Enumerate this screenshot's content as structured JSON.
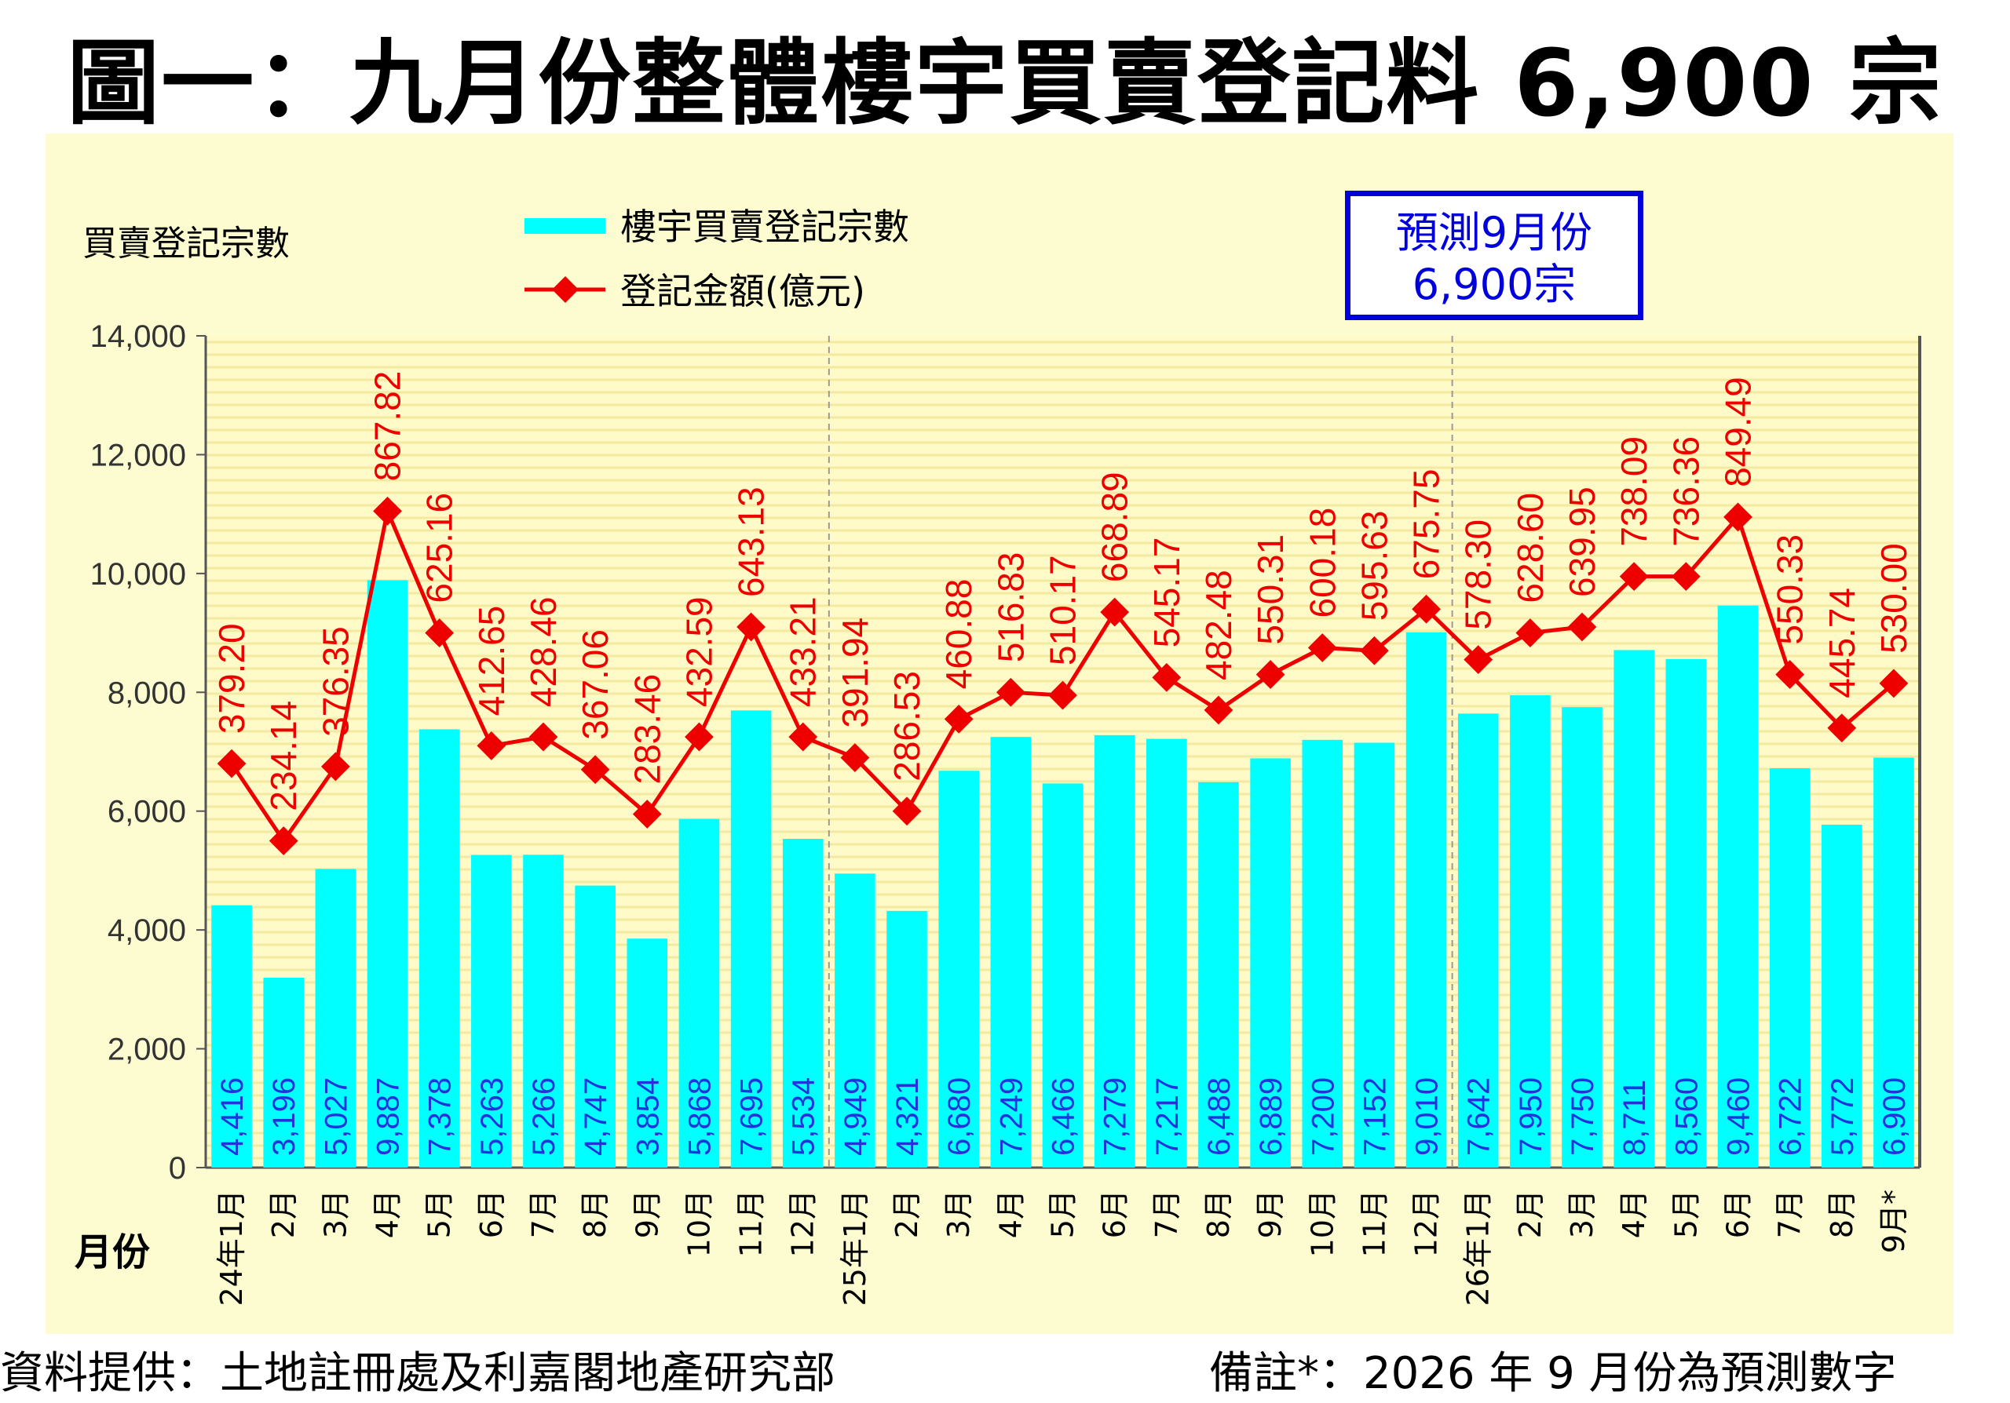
{
  "title": "圖一：九月份整體樓宇買賣登記料 6,900 宗",
  "source": "資料提供：土地註冊處及利嘉閣地產研究部",
  "note": "備註*：2026 年 9 月份為預測數字",
  "forecast_box": {
    "line1": "預測9月份",
    "line2": "6,900宗"
  },
  "colors": {
    "bar": "#00ffff",
    "line": "#ee0000",
    "bar_label": "#2233dd",
    "box": "#0000dd",
    "panel": "#fdfbd0"
  },
  "chart_data": {
    "type": "bar+line",
    "ylabel": "買賣登記宗數",
    "xlabel": "月份",
    "ylim": [
      0,
      14000
    ],
    "yticks": [
      "0",
      "2,000",
      "4,000",
      "6,000",
      "8,000",
      "10,000",
      "12,000",
      "14,000"
    ],
    "legend": [
      "樓宇買賣登記宗數",
      "登記金額(億元)"
    ],
    "legend_position": "top-left",
    "grid": true,
    "categories": [
      "24年1月",
      "2月",
      "3月",
      "4月",
      "5月",
      "6月",
      "7月",
      "8月",
      "9月",
      "10月",
      "11月",
      "12月",
      "25年1月",
      "2月",
      "3月",
      "4月",
      "5月",
      "6月",
      "7月",
      "8月",
      "9月",
      "10月",
      "11月",
      "12月",
      "26年1月",
      "2月",
      "3月",
      "4月",
      "5月",
      "6月",
      "7月",
      "8月",
      "9月*"
    ],
    "series": [
      {
        "name": "樓宇買賣登記宗數",
        "type": "bar",
        "values": [
          4416,
          3196,
          5027,
          9887,
          7378,
          5263,
          5266,
          4747,
          3854,
          5868,
          7695,
          5534,
          4949,
          4321,
          6680,
          7249,
          6466,
          7279,
          7217,
          6488,
          6889,
          7200,
          7152,
          9010,
          7642,
          7950,
          7750,
          8711,
          8560,
          9460,
          6722,
          5772,
          6900
        ],
        "labels": [
          "4,416",
          "3,196",
          "5,027",
          "9,887",
          "7,378",
          "5,263",
          "5,266",
          "4,747",
          "3,854",
          "5,868",
          "7,695",
          "5,534",
          "4,949",
          "4,321",
          "6,680",
          "7,249",
          "6,466",
          "7,279",
          "7,217",
          "6,488",
          "6,889",
          "7,200",
          "7,152",
          "9,010",
          "7,642",
          "7,950",
          "7,750",
          "8,711",
          "8,560",
          "9,460",
          "6,722",
          "5,772",
          "6,900"
        ]
      },
      {
        "name": "登記金額(億元)",
        "type": "line",
        "values": [
          379.2,
          234.14,
          376.35,
          867.82,
          625.16,
          412.65,
          428.46,
          367.06,
          283.46,
          432.59,
          643.13,
          433.21,
          391.94,
          286.53,
          460.88,
          516.83,
          510.17,
          668.89,
          545.17,
          482.48,
          550.31,
          600.18,
          595.63,
          675.75,
          578.3,
          628.6,
          639.95,
          738.09,
          736.36,
          849.49,
          550.33,
          445.74,
          530.0
        ],
        "labels": [
          "379.20",
          "234.14",
          "376.35",
          "867.82",
          "625.16",
          "412.65",
          "428.46",
          "367.06",
          "283.46",
          "432.59",
          "643.13",
          "433.21",
          "391.94",
          "286.53",
          "460.88",
          "516.83",
          "510.17",
          "668.89",
          "545.17",
          "482.48",
          "550.31",
          "600.18",
          "595.63",
          "675.75",
          "578.30",
          "628.60",
          "639.95",
          "738.09",
          "736.36",
          "849.49",
          "550.33",
          "445.74",
          "530.00"
        ],
        "marker_y": [
          6800,
          5500,
          6750,
          11050,
          9000,
          7100,
          7250,
          6700,
          5950,
          7250,
          9100,
          7250,
          6900,
          6000,
          7550,
          8000,
          7950,
          9350,
          8250,
          7700,
          8300,
          8750,
          8700,
          9400,
          8550,
          9000,
          9100,
          9950,
          9950,
          10950,
          8300,
          7400,
          8150
        ]
      }
    ],
    "year_dividers_after": [
      11,
      23
    ]
  }
}
